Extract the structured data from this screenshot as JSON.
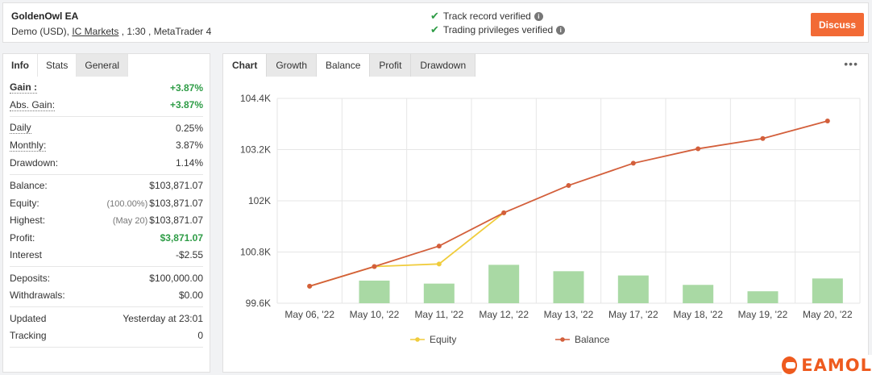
{
  "header": {
    "title": "GoldenOwl EA",
    "sub_prefix": "Demo (USD), ",
    "broker": "IC Markets",
    "sub_suffix": " , 1:30 , MetaTrader 4",
    "verify": [
      "Track record verified",
      "Trading privileges verified"
    ],
    "discuss_label": "Discuss"
  },
  "left_tabs": [
    "Info",
    "Stats",
    "General"
  ],
  "stats": [
    [
      {
        "label": "Gain :",
        "value": "+3.87%",
        "style": "green",
        "ul": true,
        "bold": true
      },
      {
        "label": "Abs. Gain:",
        "value": "+3.87%",
        "style": "green",
        "ul": true
      }
    ],
    [
      {
        "label": "Daily",
        "value": "0.25%",
        "ul": true
      },
      {
        "label": "Monthly:",
        "value": "3.87%",
        "ul": true
      },
      {
        "label": "Drawdown:",
        "value": "1.14%"
      }
    ],
    [
      {
        "label": "Balance:",
        "value": "$103,871.07"
      },
      {
        "label": "Equity:",
        "note": "(100.00%)",
        "value": "$103,871.07"
      },
      {
        "label": "Highest:",
        "note": "(May 20)",
        "value": "$103,871.07"
      },
      {
        "label": "Profit:",
        "value": "$3,871.07",
        "style": "green"
      },
      {
        "label": "Interest",
        "value": "-$2.55"
      }
    ],
    [
      {
        "label": "Deposits:",
        "value": "$100,000.00"
      },
      {
        "label": "Withdrawals:",
        "value": "$0.00"
      }
    ],
    [
      {
        "label": "Updated",
        "value": "Yesterday at 23:01"
      },
      {
        "label": "Tracking",
        "value": "0"
      }
    ]
  ],
  "right_tabs": [
    "Chart",
    "Growth",
    "Balance",
    "Profit",
    "Drawdown"
  ],
  "chart_data": {
    "type": "line",
    "categories": [
      "May 06, '22",
      "May 10, '22",
      "May 11, '22",
      "May 12, '22",
      "May 13, '22",
      "May 17, '22",
      "May 18, '22",
      "May 19, '22",
      "May 20, '22"
    ],
    "y_ticks": [
      "104.4K",
      "103.2K",
      "102K",
      "100.8K",
      "99.6K"
    ],
    "ylim": [
      99600,
      104400
    ],
    "series": [
      {
        "name": "Equity",
        "color": "#f0cc3c",
        "values": [
          100000,
          100460,
          100520,
          101720,
          null,
          null,
          null,
          null,
          null
        ]
      },
      {
        "name": "Balance",
        "color": "#d35f3b",
        "values": [
          100000,
          100460,
          100940,
          101720,
          102360,
          102880,
          103220,
          103460,
          103871
        ]
      }
    ],
    "bars": {
      "color": "#a9d9a4",
      "values": [
        null,
        100130,
        100060,
        100500,
        100350,
        100250,
        100030,
        99880,
        100180
      ]
    },
    "grid": true,
    "legend": "bottom"
  },
  "watermark": "EAMOL"
}
